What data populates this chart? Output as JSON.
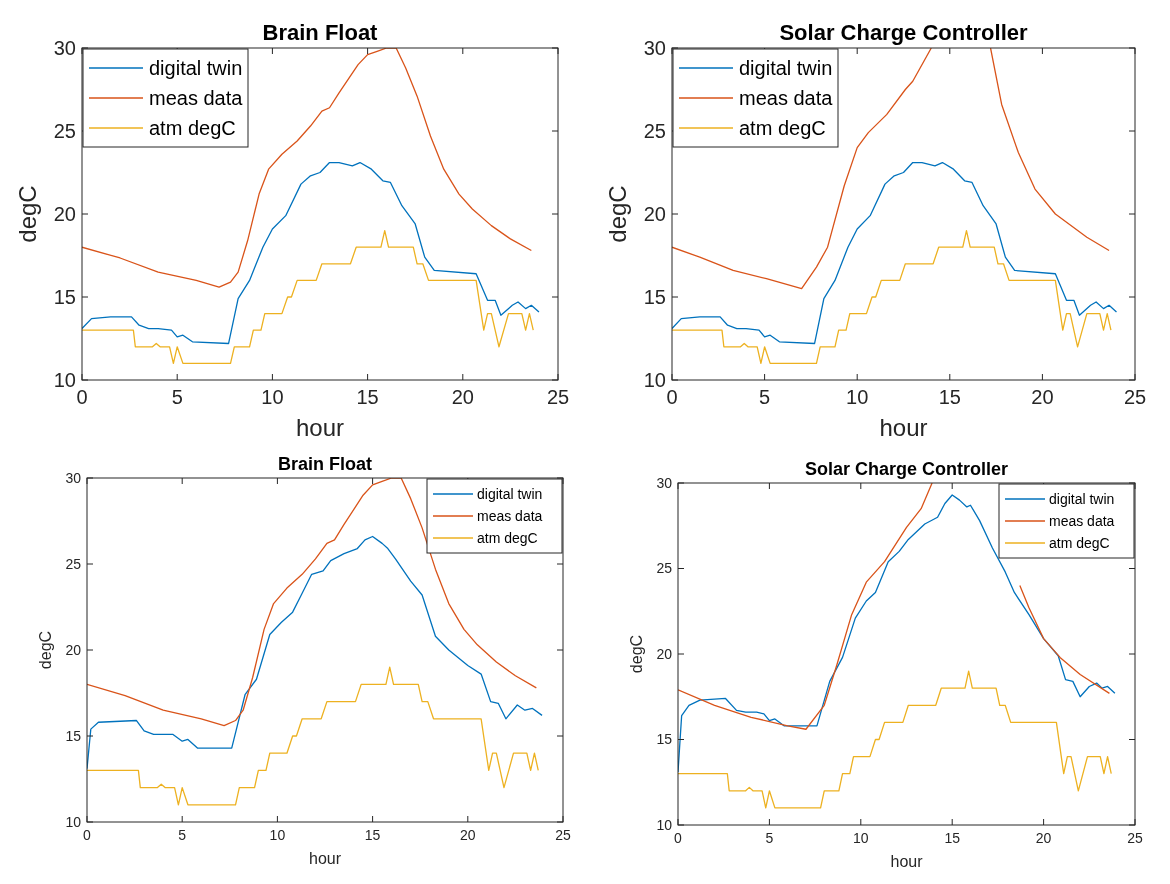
{
  "chart_data": [
    {
      "type": "line",
      "title": "Brain Float",
      "xlabel": "hour",
      "ylabel": "degC",
      "xlim": [
        0,
        25
      ],
      "xticks": [
        0,
        5,
        10,
        15,
        20,
        25
      ],
      "ylim": [
        10,
        30
      ],
      "yticks": [
        10,
        15,
        20,
        25,
        30
      ],
      "legend": "top left",
      "grid": false,
      "series": [
        {
          "name": "digital twin",
          "color": "#0072bd",
          "x": [
            0,
            0.5,
            1.5,
            2.6,
            3.0,
            3.5,
            4.0,
            4.7,
            5.0,
            5.3,
            5.8,
            7.7,
            8.2,
            8.8,
            9.5,
            10.0,
            10.7,
            11.5,
            12.0,
            12.5,
            13.0,
            13.5,
            14.2,
            14.6,
            15.2,
            15.8,
            16.2,
            16.8,
            17.5,
            18.0,
            18.5,
            20.7,
            21.3,
            21.7,
            22.0,
            22.6,
            22.9,
            23.3,
            23.6,
            24
          ],
          "values": [
            13.1,
            13.7,
            13.8,
            13.8,
            13.3,
            13.1,
            13.1,
            13,
            12.6,
            12.7,
            12.3,
            12.2,
            14.9,
            16,
            18,
            19.1,
            19.9,
            21.8,
            22.3,
            22.5,
            23.1,
            23.1,
            22.9,
            23.1,
            22.7,
            22,
            21.9,
            20.5,
            19.4,
            17.4,
            16.6,
            16.4,
            14.8,
            14.8,
            13.9,
            14.5,
            14.7,
            14.3,
            14.5,
            14.1
          ]
        },
        {
          "name": "meas data",
          "color": "#d95319",
          "x": [
            0,
            2,
            4,
            6,
            7.2,
            7.8,
            8.2,
            8.7,
            9.3,
            9.8,
            10.5,
            11.3,
            12,
            12.6,
            13,
            13.5,
            14.5,
            15,
            15.5,
            16,
            16.5,
            17,
            17.6,
            18.3,
            19,
            19.8,
            20.5,
            21.5,
            22.5,
            23.6
          ],
          "values": [
            18,
            17.35,
            16.5,
            16,
            15.6,
            15.9,
            16.5,
            18.4,
            21.2,
            22.7,
            23.6,
            24.4,
            25.3,
            26.2,
            26.4,
            27.3,
            29,
            29.6,
            29.8,
            30,
            30,
            28.8,
            27.1,
            24.7,
            22.7,
            21.2,
            20.3,
            19.3,
            18.5,
            17.8
          ]
        },
        {
          "name": "atm degC",
          "color": "#edb120",
          "x": [
            0,
            2.7,
            2.8,
            3.7,
            3.9,
            4.1,
            4.6,
            4.8,
            5.0,
            5.3,
            7.8,
            8.0,
            8.8,
            9.0,
            9.4,
            9.6,
            10.5,
            10.8,
            11.0,
            11.3,
            12.3,
            12.6,
            14.1,
            14.4,
            15.7,
            15.9,
            16.1,
            17.4,
            17.6,
            17.9,
            18.2,
            20.7,
            21.1,
            21.3,
            21.5,
            21.9,
            22.4,
            23.1,
            23.3,
            23.5,
            23.7
          ],
          "values": [
            13,
            13,
            12,
            12,
            12.2,
            12,
            12,
            11,
            12,
            11,
            11,
            12,
            12,
            13,
            13,
            14,
            14,
            15,
            15,
            16,
            16,
            17,
            17,
            18,
            18,
            19,
            18,
            18,
            17,
            17,
            16,
            16,
            13,
            14,
            14,
            12,
            14,
            14,
            13,
            14,
            13
          ]
        }
      ]
    },
    {
      "type": "line",
      "title": "Solar Charge Controller",
      "xlabel": "hour",
      "ylabel": "degC",
      "xlim": [
        0,
        25
      ],
      "xticks": [
        0,
        5,
        10,
        15,
        20,
        25
      ],
      "ylim": [
        10,
        30
      ],
      "yticks": [
        10,
        15,
        20,
        25,
        30
      ],
      "legend": "top left",
      "grid": false,
      "series": [
        {
          "name": "digital twin",
          "color": "#0072bd",
          "x": [
            0,
            0.5,
            1.5,
            2.6,
            3.0,
            3.5,
            4.0,
            4.7,
            5.0,
            5.3,
            5.8,
            7.7,
            8.2,
            8.8,
            9.5,
            10.0,
            10.7,
            11.5,
            12.0,
            12.5,
            13.0,
            13.5,
            14.2,
            14.6,
            15.2,
            15.8,
            16.2,
            16.8,
            17.5,
            18.0,
            18.5,
            20.7,
            21.3,
            21.7,
            22.0,
            22.6,
            22.9,
            23.3,
            23.6,
            24
          ],
          "values": [
            13.1,
            13.7,
            13.8,
            13.8,
            13.3,
            13.1,
            13.1,
            13,
            12.6,
            12.7,
            12.3,
            12.2,
            14.9,
            16,
            18,
            19.1,
            19.9,
            21.8,
            22.3,
            22.5,
            23.1,
            23.1,
            22.9,
            23.1,
            22.7,
            22,
            21.9,
            20.5,
            19.4,
            17.4,
            16.6,
            16.4,
            14.8,
            14.8,
            13.9,
            14.5,
            14.7,
            14.3,
            14.5,
            14.1
          ]
        },
        {
          "name": "meas data",
          "color": "#d95319",
          "x": [
            0,
            1.5,
            3.3,
            5.1,
            7.0,
            7.8,
            8.4,
            9.3,
            10.0,
            10.6,
            11.6,
            12.6,
            13.0,
            14.0,
            14.5,
            17.2,
            17.8,
            18.7,
            19.6,
            20.7,
            22.4,
            23.6
          ],
          "values": [
            18,
            17.4,
            16.6,
            16.1,
            15.5,
            16.8,
            18,
            21.7,
            24,
            24.9,
            26,
            27.5,
            28,
            30,
            null,
            30,
            26.6,
            23.7,
            21.5,
            20,
            18.6,
            17.8
          ]
        },
        {
          "name": "atm degC",
          "color": "#edb120",
          "x": [
            0,
            2.7,
            2.8,
            3.7,
            3.9,
            4.1,
            4.6,
            4.8,
            5.0,
            5.3,
            7.8,
            8.0,
            8.8,
            9.0,
            9.4,
            9.6,
            10.5,
            10.8,
            11.0,
            11.3,
            12.3,
            12.6,
            14.1,
            14.4,
            15.7,
            15.9,
            16.1,
            17.4,
            17.6,
            17.9,
            18.2,
            20.7,
            21.1,
            21.3,
            21.5,
            21.9,
            22.4,
            23.1,
            23.3,
            23.5,
            23.7
          ],
          "values": [
            13,
            13,
            12,
            12,
            12.2,
            12,
            12,
            11,
            12,
            11,
            11,
            12,
            12,
            13,
            13,
            14,
            14,
            15,
            15,
            16,
            16,
            17,
            17,
            18,
            18,
            19,
            18,
            18,
            17,
            17,
            16,
            16,
            13,
            14,
            14,
            12,
            14,
            14,
            13,
            14,
            13
          ]
        }
      ]
    },
    {
      "type": "line",
      "title": "Brain Float",
      "xlabel": "hour",
      "ylabel": "degC",
      "xlim": [
        0,
        25
      ],
      "xticks": [
        0,
        5,
        10,
        15,
        20,
        25
      ],
      "ylim": [
        10,
        30
      ],
      "yticks": [
        10,
        15,
        20,
        25,
        30
      ],
      "legend": "top right",
      "grid": false,
      "series": [
        {
          "name": "digital twin",
          "color": "#0072bd",
          "x": [
            0,
            0.2,
            0.6,
            2.6,
            3.0,
            3.5,
            4.5,
            5.0,
            5.3,
            5.8,
            7.6,
            8.3,
            8.9,
            9.6,
            10.2,
            10.8,
            11.3,
            11.8,
            12.4,
            12.8,
            13.5,
            14.2,
            14.6,
            15.0,
            15.5,
            15.8,
            16.2,
            17.0,
            17.6,
            18.3,
            19.0,
            20.0,
            20.7,
            21.2,
            21.6,
            22.0,
            22.6,
            23.0,
            23.4,
            23.9
          ],
          "values": [
            13.1,
            15.4,
            15.8,
            15.9,
            15.3,
            15.1,
            15.1,
            14.7,
            14.8,
            14.3,
            14.3,
            17.4,
            18.3,
            20.9,
            21.6,
            22.2,
            23.3,
            24.4,
            24.6,
            25.2,
            25.6,
            25.9,
            26.4,
            26.6,
            26.2,
            25.9,
            25.3,
            24,
            23.2,
            20.8,
            20,
            19.1,
            18.6,
            17,
            16.9,
            16,
            16.8,
            16.5,
            16.6,
            16.2
          ]
        },
        {
          "name": "meas data",
          "color": "#d95319",
          "x": [
            0,
            2,
            4,
            6,
            7.2,
            7.8,
            8.2,
            8.7,
            9.3,
            9.8,
            10.5,
            11.3,
            12,
            12.6,
            13,
            13.5,
            14.5,
            15,
            15.5,
            16,
            16.5,
            17,
            17.6,
            18.3,
            19,
            19.8,
            20.5,
            21.5,
            22.5,
            23.6
          ],
          "values": [
            18,
            17.35,
            16.5,
            16,
            15.6,
            15.9,
            16.5,
            18.4,
            21.2,
            22.7,
            23.6,
            24.4,
            25.3,
            26.2,
            26.4,
            27.3,
            29,
            29.6,
            29.8,
            30,
            30,
            28.8,
            27.1,
            24.7,
            22.7,
            21.2,
            20.3,
            19.3,
            18.5,
            17.8
          ]
        },
        {
          "name": "atm degC",
          "color": "#edb120",
          "x": [
            0,
            2.7,
            2.8,
            3.7,
            3.9,
            4.1,
            4.6,
            4.8,
            5.0,
            5.3,
            7.8,
            8.0,
            8.8,
            9.0,
            9.4,
            9.6,
            10.5,
            10.8,
            11.0,
            11.3,
            12.3,
            12.6,
            14.1,
            14.4,
            15.7,
            15.9,
            16.1,
            17.4,
            17.6,
            17.9,
            18.2,
            20.7,
            21.1,
            21.3,
            21.5,
            21.9,
            22.4,
            23.1,
            23.3,
            23.5,
            23.7
          ],
          "values": [
            13,
            13,
            12,
            12,
            12.2,
            12,
            12,
            11,
            12,
            11,
            11,
            12,
            12,
            13,
            13,
            14,
            14,
            15,
            15,
            16,
            16,
            17,
            17,
            18,
            18,
            19,
            18,
            18,
            17,
            17,
            16,
            16,
            13,
            14,
            14,
            12,
            14,
            14,
            13,
            14,
            13
          ]
        }
      ]
    },
    {
      "type": "line",
      "title": "Solar Charge Controller",
      "xlabel": "hour",
      "ylabel": "degC",
      "xlim": [
        0,
        25
      ],
      "xticks": [
        0,
        5,
        10,
        15,
        20,
        25
      ],
      "ylim": [
        10,
        30
      ],
      "yticks": [
        10,
        15,
        20,
        25,
        30
      ],
      "legend": "top right",
      "grid": false,
      "series": [
        {
          "name": "digital twin",
          "color": "#0072bd",
          "x": [
            0,
            0.2,
            0.6,
            1.2,
            2.6,
            3.2,
            3.7,
            4.3,
            4.7,
            5.0,
            5.3,
            5.8,
            7.6,
            8.3,
            9.0,
            9.7,
            10.3,
            10.8,
            11.5,
            12.1,
            12.6,
            13.5,
            14.2,
            14.6,
            15.0,
            15.4,
            15.8,
            16.0,
            16.5,
            17.2,
            17.9,
            18.4,
            19.2,
            20.0,
            20.8,
            21.2,
            21.6,
            22.0,
            22.5,
            22.9,
            23.2,
            23.5,
            23.9
          ],
          "values": [
            13.1,
            16.4,
            17,
            17.3,
            17.4,
            16.7,
            16.6,
            16.6,
            16.5,
            16.1,
            16.2,
            15.8,
            15.8,
            18.4,
            19.8,
            22.1,
            23.1,
            23.6,
            25.4,
            26,
            26.7,
            27.6,
            28,
            28.8,
            29.3,
            29,
            28.6,
            28.7,
            27.8,
            26.2,
            24.8,
            23.6,
            22.3,
            20.9,
            19.9,
            18.5,
            18.4,
            17.5,
            18.1,
            18.3,
            18,
            18.1,
            17.7
          ]
        },
        {
          "name": "meas data",
          "color": "#d95319",
          "x": [
            0,
            2,
            4,
            6,
            7.0,
            8.0,
            8.7,
            9.5,
            10.3,
            11.3,
            12.5,
            13.3,
            13.9,
            16.0,
            18.7,
            19.2,
            20,
            20.9,
            22,
            23.6
          ],
          "values": [
            17.9,
            17,
            16.3,
            15.8,
            15.6,
            17,
            19.4,
            22.3,
            24.2,
            25.4,
            27.4,
            28.5,
            30,
            null,
            24,
            22.7,
            20.9,
            19.8,
            18.8,
            17.7
          ]
        },
        {
          "name": "atm degC",
          "color": "#edb120",
          "x": [
            0,
            2.7,
            2.8,
            3.7,
            3.9,
            4.1,
            4.6,
            4.8,
            5.0,
            5.3,
            7.8,
            8.0,
            8.8,
            9.0,
            9.4,
            9.6,
            10.5,
            10.8,
            11.0,
            11.3,
            12.3,
            12.6,
            14.1,
            14.4,
            15.7,
            15.9,
            16.1,
            17.4,
            17.6,
            17.9,
            18.2,
            20.7,
            21.1,
            21.3,
            21.5,
            21.9,
            22.4,
            23.1,
            23.3,
            23.5,
            23.7
          ],
          "values": [
            13,
            13,
            12,
            12,
            12.2,
            12,
            12,
            11,
            12,
            11,
            11,
            12,
            12,
            13,
            13,
            14,
            14,
            15,
            15,
            16,
            16,
            17,
            17,
            18,
            18,
            19,
            18,
            18,
            17,
            17,
            16,
            16,
            13,
            14,
            14,
            12,
            14,
            14,
            13,
            14,
            13
          ]
        }
      ]
    }
  ]
}
